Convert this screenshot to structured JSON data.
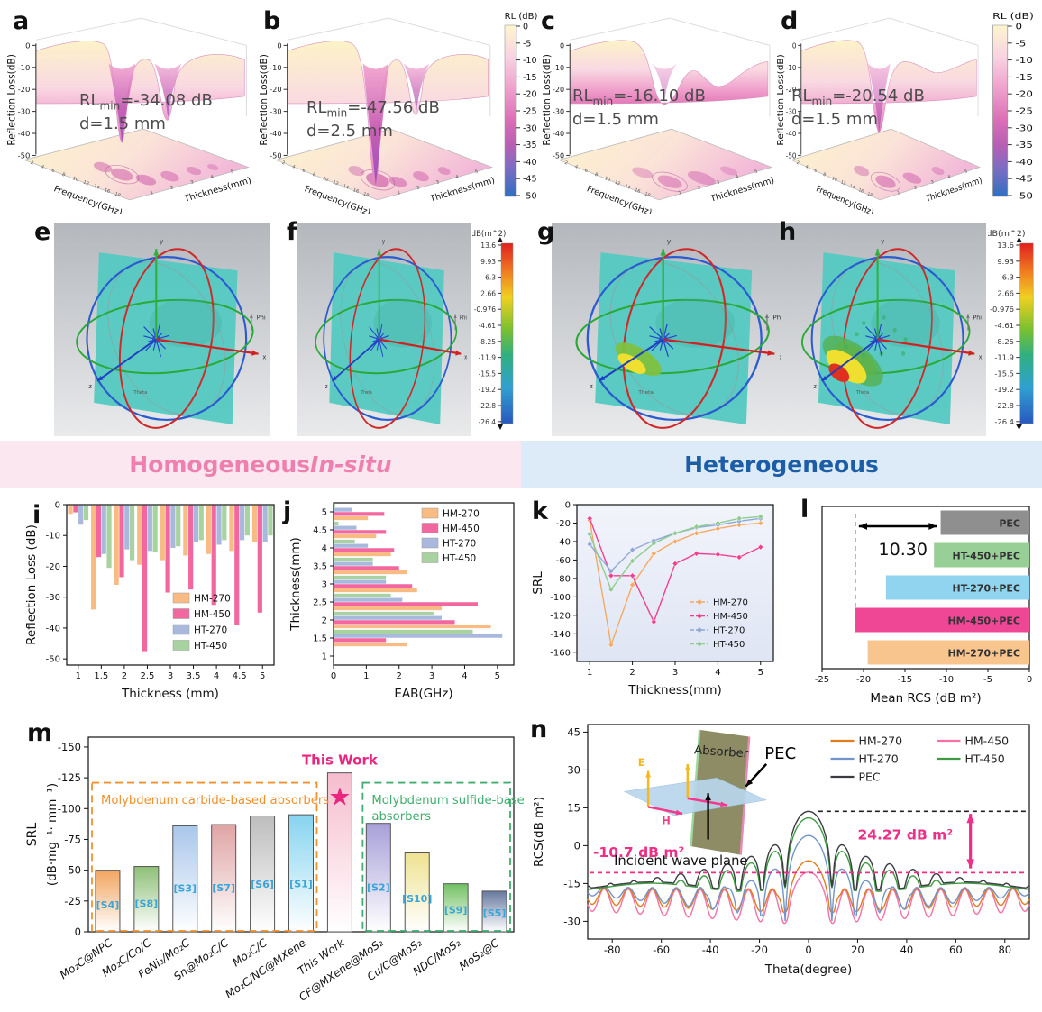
{
  "banner": {
    "left_regular": "Homogeneous ",
    "left_italic": "In-situ",
    "right": "Heterogeneous"
  },
  "surface": {
    "zlabel": "Reflection Loss(dB)",
    "zticks": [
      "0",
      "-10",
      "-20",
      "-30",
      "-40",
      "-50"
    ],
    "xlabel": "Frequency(GHz)",
    "ylabel": "Thickness(mm)",
    "freq_ticks": [
      "2",
      "4",
      "6",
      "8",
      "10",
      "12",
      "14",
      "16",
      "18"
    ],
    "thick_ticks": [
      "1",
      "2",
      "3",
      "4",
      "5"
    ],
    "colorbar": {
      "title": "RL (dB)",
      "ticks": [
        "0",
        "-5",
        "-10",
        "-15",
        "-20",
        "-25",
        "-30",
        "-35",
        "-40",
        "-45",
        "-50"
      ]
    },
    "items": [
      {
        "letter": "a",
        "ann": {
          "prefix": "RL",
          "sub": "min",
          "value": "=-34.08 dB",
          "d": "d=1.5 mm"
        },
        "style": "double"
      },
      {
        "letter": "b",
        "ann": {
          "prefix": "RL",
          "sub": "min",
          "value": "=-47.56 dB",
          "d": "d=2.5 mm"
        },
        "style": "deep"
      },
      {
        "letter": "c",
        "ann": {
          "prefix": "RL",
          "sub": "min",
          "value": "=-16.10 dB",
          "d": "d=1.5 mm"
        },
        "style": "shallow"
      },
      {
        "letter": "d",
        "ann": {
          "prefix": "RL",
          "sub": "min",
          "value": "=-20.54 dB",
          "d": "d=1.5 mm"
        },
        "style": "medium"
      }
    ]
  },
  "radiation": {
    "colorbar": {
      "title": "dB(m^2)",
      "ticks": [
        "13.6",
        "9.93",
        "6.3",
        "2.66",
        "-0.976",
        "-4.61",
        "-8.25",
        "-11.9",
        "-15.5",
        "-19.2",
        "-22.8",
        "-26.4"
      ]
    },
    "phi_label": "Phi",
    "theta_label": "Theta",
    "items": [
      {
        "letter": "e",
        "lobe": "small"
      },
      {
        "letter": "f",
        "lobe": "small"
      },
      {
        "letter": "g",
        "lobe": "medium"
      },
      {
        "letter": "h",
        "lobe": "large"
      }
    ]
  },
  "chart_data": [
    {
      "id": "i",
      "type": "bar",
      "orientation": "vertical-down",
      "letter": "i",
      "xlabel": "Thickness (mm)",
      "ylabel": "Reflection Loss (dB)",
      "categories": [
        1,
        1.5,
        2,
        2.5,
        3,
        3.5,
        4,
        4.5,
        5
      ],
      "yticks": [
        0,
        -10,
        -20,
        -30,
        -40,
        -50
      ],
      "ylim": [
        0,
        -52
      ],
      "legend_position": "bottom-right",
      "series": [
        {
          "name": "HM-270",
          "color": "#f8bb84",
          "values": [
            -3,
            -34,
            -26,
            -19.5,
            -18,
            -16.5,
            -16,
            -15,
            -12
          ]
        },
        {
          "name": "HM-450",
          "color": "#f2679f",
          "values": [
            -2.5,
            -17,
            -23.5,
            -47.5,
            -28.5,
            -27.5,
            -32.5,
            -39,
            -35
          ]
        },
        {
          "name": "HT-270",
          "color": "#a9b9de",
          "values": [
            -6.5,
            -16,
            -14.5,
            -15,
            -14,
            -12,
            -13,
            -11.5,
            -12
          ]
        },
        {
          "name": "HT-450",
          "color": "#a8d3a0",
          "values": [
            -5,
            -20.5,
            -18,
            -15.5,
            -13.5,
            -11.5,
            -11.5,
            -10,
            -10
          ]
        }
      ]
    },
    {
      "id": "j",
      "type": "bar",
      "orientation": "horizontal",
      "letter": "j",
      "xlabel": "EAB(GHz)",
      "ylabel": "Thickness(mm)",
      "categories": [
        1,
        1.5,
        2,
        2.5,
        3,
        3.5,
        4,
        4.5,
        5
      ],
      "xticks": [
        0,
        1,
        2,
        3,
        4,
        5
      ],
      "xlim": [
        0,
        5.5
      ],
      "legend_position": "top-right",
      "series": [
        {
          "name": "HM-270",
          "color": "#f8bb84",
          "values": [
            0,
            2.25,
            4.8,
            3.3,
            2.55,
            2.25,
            1.75,
            1.3,
            1.05
          ]
        },
        {
          "name": "HM-450",
          "color": "#f2679f",
          "values": [
            0,
            1.6,
            3.7,
            4.4,
            2.4,
            2.0,
            1.85,
            1.6,
            1.55
          ]
        },
        {
          "name": "HT-270",
          "color": "#a9b9de",
          "values": [
            0,
            5.15,
            3.3,
            2.1,
            1.6,
            1.2,
            1.05,
            0.7,
            0.55
          ]
        },
        {
          "name": "HT-450",
          "color": "#a8d3a0",
          "values": [
            0,
            4.25,
            3.05,
            1.75,
            1.6,
            1.2,
            0.65,
            0.15,
            0.05
          ]
        }
      ]
    },
    {
      "id": "k",
      "type": "line",
      "letter": "k",
      "xlabel": "Thickness(mm)",
      "ylabel": "SRL",
      "x": [
        1,
        1.5,
        2,
        2.5,
        3,
        3.5,
        4,
        4.5,
        5
      ],
      "xticks": [
        1,
        2,
        3,
        4,
        5
      ],
      "yticks": [
        0,
        -20,
        -40,
        -60,
        -80,
        -100,
        -120,
        -140,
        -160
      ],
      "ylim": [
        0,
        -170
      ],
      "legend_position": "bottom-right",
      "series": [
        {
          "name": "HM-270",
          "color": "#f5a963",
          "values": [
            -17,
            -152,
            -87,
            -53,
            -40,
            -31,
            -26,
            -22,
            -20
          ]
        },
        {
          "name": "HM-450",
          "color": "#f2408f",
          "values": [
            -15,
            -77,
            -77,
            -127,
            -64,
            -53,
            -54,
            -57,
            -46
          ]
        },
        {
          "name": "HT-270",
          "color": "#8fa8d8",
          "values": [
            -43,
            -72,
            -49,
            -39,
            -31,
            -25,
            -22,
            -18,
            -15
          ]
        },
        {
          "name": "HT-450",
          "color": "#8fcc8f",
          "values": [
            -32,
            -92,
            -61,
            -42,
            -31,
            -24,
            -20,
            -15,
            -13
          ]
        }
      ]
    },
    {
      "id": "l",
      "type": "bar",
      "orientation": "horizontal",
      "letter": "l",
      "xlabel": "Mean RCS (dB m²)",
      "categories": [
        "PEC",
        "HT-450+PEC",
        "HT-270+PEC",
        "HM-450+PEC",
        "HM-270+PEC"
      ],
      "values": [
        -10.7,
        -11.5,
        -17.3,
        -21.0,
        -19.5
      ],
      "colors": [
        "#8f8f8f",
        "#97cf96",
        "#90d4f0",
        "#ef4796",
        "#f8c58f"
      ],
      "xticks": [
        -25,
        -20,
        -15,
        -10,
        -5,
        0
      ],
      "xlim": [
        -25,
        0
      ],
      "annotation": {
        "label": "10.30",
        "dashed_x": -21.0,
        "arrow_from": -21.0,
        "arrow_to": -10.7,
        "dashed_color": "#f0569b"
      }
    },
    {
      "id": "m",
      "type": "bar",
      "orientation": "vertical-inverted",
      "letter": "m",
      "ylabel_line1": "SRL",
      "ylabel_line2": "(dB·mg⁻¹· mm⁻¹)",
      "yticks": [
        -150,
        -125,
        -100,
        -75,
        -50,
        -25,
        0
      ],
      "ylim": [
        0,
        -158
      ],
      "categories": [
        "Mo₂C@NPC",
        "Mo₂C/Co/C",
        "FeNi₃/Mo₂C",
        "Sn@Mo₂C/C",
        "Mo₂C/C",
        "Mo₂C/NC@MXene",
        "This Work",
        "CF@MXene@MoS₂",
        "Cu/C@MoS₂",
        "NDC/MoS₂",
        "MoS₂@C"
      ],
      "values": [
        -50,
        -53,
        -86,
        -87,
        -94,
        -95,
        -129,
        -88,
        -64,
        -39,
        -33
      ],
      "refs": [
        "[S4]",
        "[S8]",
        "[S3]",
        "[S7]",
        "[S6]",
        "[S1]",
        "",
        "[S2]",
        "[S10]",
        "[S9]",
        "[S5]"
      ],
      "colors": [
        "#f2a55f",
        "#8fc078",
        "#a9c6ea",
        "#e0a4a4",
        "#bdbdbd",
        "#86d4ef",
        "#f6bccd",
        "#a7a0d8",
        "#efe291",
        "#72c163",
        "#67799f"
      ],
      "ref_color": "#3aa5d9",
      "this_work": {
        "label": "This Work",
        "color": "#e8257f",
        "index": 6
      },
      "boxes": [
        {
          "label_lines": [
            "Molybdenum carbide-based absorbers"
          ],
          "color": "#f0912f",
          "from": 0,
          "to": 5,
          "top": -121
        },
        {
          "label_lines": [
            "Molybdenum sulfide-based",
            "absorbers"
          ],
          "color": "#3fae6e",
          "from": 7,
          "to": 10,
          "top": -121
        }
      ]
    },
    {
      "id": "n",
      "type": "line",
      "letter": "n",
      "xlabel": "Theta(degree)",
      "ylabel": "RCS(dB m²)",
      "xticks": [
        -80,
        -60,
        -40,
        -20,
        0,
        20,
        40,
        60,
        80
      ],
      "xlim": [
        -90,
        90
      ],
      "yticks": [
        -30,
        -15,
        0,
        15,
        30,
        45
      ],
      "ylim": [
        -37,
        48
      ],
      "null_spacing_deg": 9.5,
      "series": [
        {
          "name": "HM-450",
          "color": "#f472a6",
          "peak": -10.5,
          "mode": "osc",
          "base": -24.5,
          "amp": 7,
          "decay": 200,
          "rise": 3
        },
        {
          "name": "HM-270",
          "color": "#e07d1e",
          "peak": -6,
          "mode": "osc",
          "base": -22,
          "amp": 5,
          "decay": 200,
          "rise": 2
        },
        {
          "name": "HT-270",
          "color": "#7294cb",
          "peak": 4,
          "mode": "osc",
          "base": -23,
          "amp": 9,
          "decay": 55,
          "rise": 5
        },
        {
          "name": "HT-450",
          "color": "#3e9b41",
          "peak": 11,
          "mode": "wave",
          "base": -16.5,
          "amp": 1.6
        },
        {
          "name": "PEC",
          "color": "#3b3b42",
          "peak": 13.6,
          "mode": "wave",
          "base": -16,
          "amp": 1.6
        }
      ],
      "legend_rows": [
        [
          "HM-270",
          "HM-450"
        ],
        [
          "HT-270",
          "HT-450"
        ],
        [
          "PEC"
        ]
      ],
      "annotations": {
        "top_dash_y": 13.6,
        "pink_dash_y": -10.7,
        "left_label": "-10.7 dB m²",
        "arrow_label": "24.27 dB m²",
        "pink": "#ee2f87"
      },
      "inset": {
        "absorber": "Absorber",
        "pec": "PEC",
        "plane": "Incident wave plane",
        "e_label": "E",
        "h_label": "H"
      }
    }
  ]
}
